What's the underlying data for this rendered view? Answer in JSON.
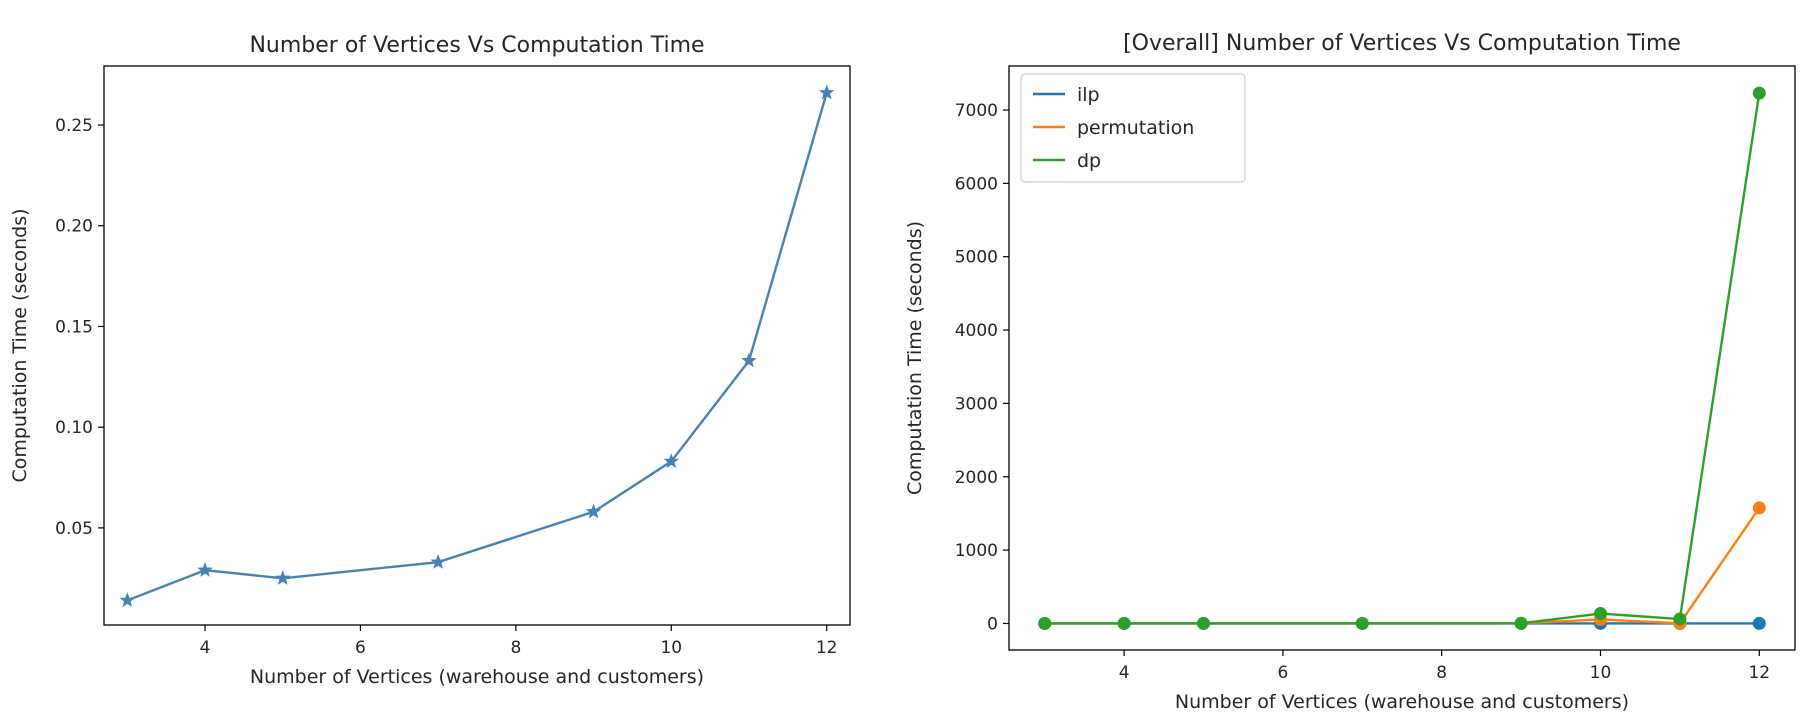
{
  "chart_data": [
    {
      "type": "line",
      "title": "Number of Vertices Vs Computation Time",
      "xlabel": "Number of Vertices (warehouse and customers)",
      "ylabel": "Computation Time (seconds)",
      "xlim": [
        2.7,
        12.3
      ],
      "ylim": [
        0.0018,
        0.2793
      ],
      "x_ticks": [
        4,
        6,
        8,
        10,
        12
      ],
      "x_tick_labels": [
        "4",
        "6",
        "8",
        "10",
        "12"
      ],
      "y_ticks": [
        0.05,
        0.1,
        0.15,
        0.2,
        0.25
      ],
      "y_tick_labels": [
        "0.05",
        "0.10",
        "0.15",
        "0.20",
        "0.25"
      ],
      "grid": false,
      "series": [
        {
          "color": "#4682b4",
          "marker": "star",
          "x": [
            3,
            4,
            5,
            7,
            9,
            10,
            11,
            12
          ],
          "values": [
            0.014,
            0.029,
            0.025,
            0.033,
            0.058,
            0.083,
            0.133,
            0.266
          ]
        }
      ]
    },
    {
      "type": "line",
      "title": "[Overall] Number of Vertices Vs Computation Time",
      "xlabel": "Number of Vertices (warehouse and customers)",
      "ylabel": "Computation Time (seconds)",
      "xlim": [
        2.55,
        12.45
      ],
      "ylim": [
        -362,
        7600
      ],
      "x_ticks": [
        4,
        6,
        8,
        10,
        12
      ],
      "x_tick_labels": [
        "4",
        "6",
        "8",
        "10",
        "12"
      ],
      "y_ticks": [
        0,
        1000,
        2000,
        3000,
        4000,
        5000,
        6000,
        7000
      ],
      "y_tick_labels": [
        "0",
        "1000",
        "2000",
        "3000",
        "4000",
        "5000",
        "6000",
        "7000"
      ],
      "grid": false,
      "legend_position": "upper-left",
      "series": [
        {
          "name": "ilp",
          "color": "#1f77b4",
          "marker": "circle",
          "x": [
            3,
            4,
            5,
            7,
            9,
            10,
            11,
            12
          ],
          "values": [
            0.01,
            0.03,
            0.03,
            0.03,
            0.06,
            0.08,
            0.13,
            0.27
          ]
        },
        {
          "name": "permutation",
          "color": "#ff7f0e",
          "marker": "circle",
          "x": [
            3,
            4,
            5,
            7,
            9,
            10,
            11,
            12
          ],
          "values": [
            0,
            0,
            0,
            0,
            1,
            55,
            2,
            1575
          ]
        },
        {
          "name": "dp",
          "color": "#2ca02c",
          "marker": "circle",
          "x": [
            3,
            4,
            5,
            7,
            9,
            10,
            11,
            12
          ],
          "values": [
            0,
            0,
            0,
            0,
            2,
            135,
            60,
            7230
          ]
        }
      ]
    }
  ]
}
